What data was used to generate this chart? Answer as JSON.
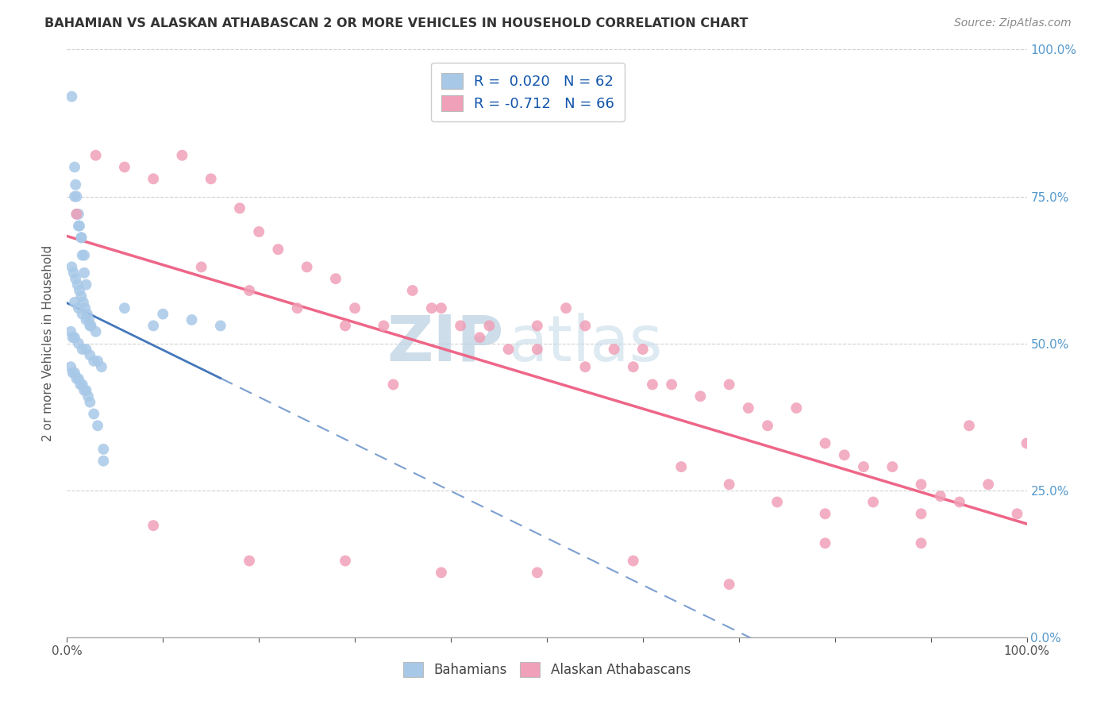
{
  "title": "BAHAMIAN VS ALASKAN ATHABASCAN 2 OR MORE VEHICLES IN HOUSEHOLD CORRELATION CHART",
  "source": "Source: ZipAtlas.com",
  "ylabel": "2 or more Vehicles in Household",
  "xlim": [
    0.0,
    1.0
  ],
  "ylim": [
    0.0,
    1.0
  ],
  "ytick_positions": [
    0.0,
    0.25,
    0.5,
    0.75,
    1.0
  ],
  "ytick_labels": [
    "0.0%",
    "25.0%",
    "50.0%",
    "75.0%",
    "100.0%"
  ],
  "xtick_positions_minor": [
    0.0,
    0.1,
    0.2,
    0.3,
    0.4,
    0.5,
    0.6,
    0.7,
    0.8,
    0.9,
    1.0
  ],
  "xtick_end_labels": [
    "0.0%",
    "100.0%"
  ],
  "bahamian_color": "#a8c8e8",
  "athabascan_color": "#f0a0b8",
  "bahamian_line_color": "#4477bb",
  "athabascan_line_color": "#ee6688",
  "watermark_zip": "ZIP",
  "watermark_atlas": "atlas",
  "watermark_color": "#c5d8ed",
  "legend_label_1": "R =  0.020   N = 62",
  "legend_label_2": "R = -0.712   N = 66",
  "bahamians_x": [
    0.005,
    0.008,
    0.009,
    0.01,
    0.012,
    0.013,
    0.015,
    0.016,
    0.018,
    0.02,
    0.008,
    0.01,
    0.012,
    0.015,
    0.018,
    0.005,
    0.007,
    0.009,
    0.011,
    0.013,
    0.015,
    0.017,
    0.019,
    0.021,
    0.023,
    0.025,
    0.008,
    0.012,
    0.016,
    0.02,
    0.024,
    0.03,
    0.004,
    0.006,
    0.008,
    0.012,
    0.016,
    0.02,
    0.024,
    0.028,
    0.032,
    0.036,
    0.004,
    0.006,
    0.008,
    0.01,
    0.012,
    0.014,
    0.016,
    0.018,
    0.02,
    0.022,
    0.024,
    0.028,
    0.032,
    0.1,
    0.09,
    0.13,
    0.16,
    0.06,
    0.038,
    0.038
  ],
  "bahamians_y": [
    0.92,
    0.8,
    0.77,
    0.75,
    0.72,
    0.7,
    0.68,
    0.65,
    0.62,
    0.6,
    0.75,
    0.72,
    0.7,
    0.68,
    0.65,
    0.63,
    0.62,
    0.61,
    0.6,
    0.59,
    0.58,
    0.57,
    0.56,
    0.55,
    0.54,
    0.53,
    0.57,
    0.56,
    0.55,
    0.54,
    0.53,
    0.52,
    0.52,
    0.51,
    0.51,
    0.5,
    0.49,
    0.49,
    0.48,
    0.47,
    0.47,
    0.46,
    0.46,
    0.45,
    0.45,
    0.44,
    0.44,
    0.43,
    0.43,
    0.42,
    0.42,
    0.41,
    0.4,
    0.38,
    0.36,
    0.55,
    0.53,
    0.54,
    0.53,
    0.56,
    0.32,
    0.3
  ],
  "athabascans_x": [
    0.01,
    0.03,
    0.06,
    0.09,
    0.12,
    0.15,
    0.18,
    0.2,
    0.22,
    0.25,
    0.28,
    0.3,
    0.33,
    0.36,
    0.38,
    0.41,
    0.43,
    0.46,
    0.49,
    0.52,
    0.54,
    0.57,
    0.59,
    0.61,
    0.63,
    0.66,
    0.69,
    0.71,
    0.73,
    0.76,
    0.79,
    0.81,
    0.83,
    0.86,
    0.89,
    0.91,
    0.93,
    0.96,
    0.99,
    1.0,
    0.14,
    0.19,
    0.24,
    0.29,
    0.34,
    0.39,
    0.44,
    0.49,
    0.54,
    0.6,
    0.64,
    0.69,
    0.74,
    0.79,
    0.84,
    0.89,
    0.94,
    0.09,
    0.19,
    0.29,
    0.39,
    0.49,
    0.59,
    0.69,
    0.79,
    0.89
  ],
  "athabascans_y": [
    0.72,
    0.82,
    0.8,
    0.78,
    0.82,
    0.78,
    0.73,
    0.69,
    0.66,
    0.63,
    0.61,
    0.56,
    0.53,
    0.59,
    0.56,
    0.53,
    0.51,
    0.49,
    0.53,
    0.56,
    0.53,
    0.49,
    0.46,
    0.43,
    0.43,
    0.41,
    0.43,
    0.39,
    0.36,
    0.39,
    0.33,
    0.31,
    0.29,
    0.29,
    0.26,
    0.24,
    0.23,
    0.26,
    0.21,
    0.33,
    0.63,
    0.59,
    0.56,
    0.53,
    0.43,
    0.56,
    0.53,
    0.49,
    0.46,
    0.49,
    0.29,
    0.26,
    0.23,
    0.21,
    0.23,
    0.21,
    0.36,
    0.19,
    0.13,
    0.13,
    0.11,
    0.11,
    0.13,
    0.09,
    0.16,
    0.16
  ]
}
